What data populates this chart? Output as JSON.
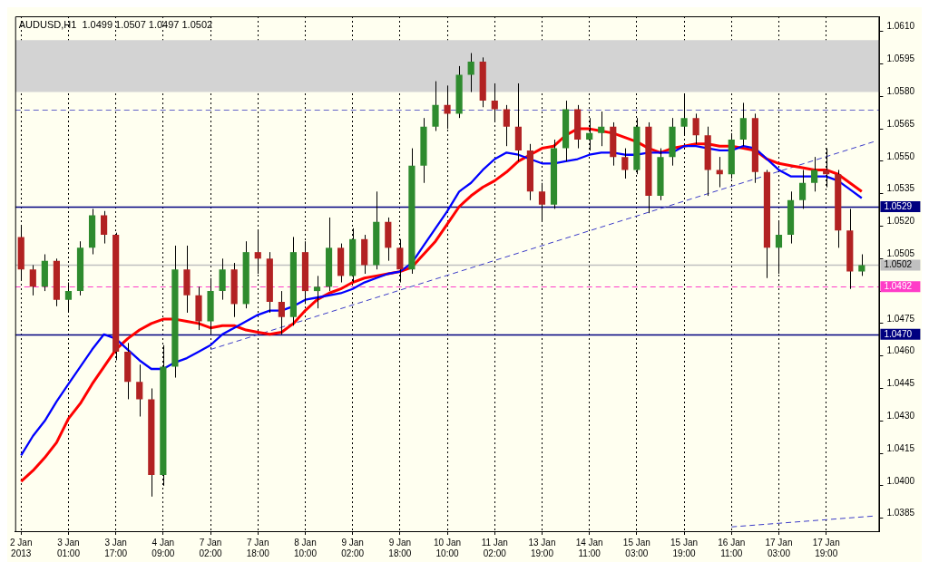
{
  "chart_data": {
    "type": "candlestick",
    "title": "AUDUSD,H1  1.0499 1.0507 1.0497 1.0502",
    "categories": [
      "2 Jan 2013",
      null,
      null,
      null,
      "3 Jan 01:00",
      null,
      null,
      null,
      "3 Jan 17:00",
      null,
      null,
      null,
      "4 Jan 09:00",
      null,
      null,
      null,
      "7 Jan 02:00",
      null,
      null,
      null,
      "7 Jan 18:00",
      null,
      null,
      null,
      "8 Jan 10:00",
      null,
      null,
      null,
      "9 Jan 02:00",
      null,
      null,
      null,
      "9 Jan 18:00",
      null,
      null,
      null,
      "10 Jan 10:00",
      null,
      null,
      null,
      "11 Jan 02:00",
      null,
      null,
      null,
      "13 Jan 19:00",
      null,
      null,
      null,
      "14 Jan 11:00",
      null,
      null,
      null,
      "15 Jan 03:00",
      null,
      null,
      null,
      "15 Jan 19:00",
      null,
      null,
      null,
      "16 Jan 11:00",
      null,
      null,
      null,
      "17 Jan 03:00",
      null,
      null,
      null,
      "17 Jan 19:00",
      null,
      null,
      null,
      null
    ],
    "series": [
      {
        "ohlc": [
          [
            1.0515,
            1.052,
            1.0495,
            1.05
          ],
          [
            1.05,
            1.0502,
            1.0488,
            1.0492
          ],
          [
            1.0492,
            1.0507,
            1.049,
            1.0504
          ],
          [
            1.0504,
            1.0505,
            1.0483,
            1.0486
          ],
          [
            1.0486,
            1.0494,
            1.048,
            1.049
          ],
          [
            1.049,
            1.0513,
            1.0488,
            1.051
          ],
          [
            1.051,
            1.0528,
            1.0507,
            1.0525
          ],
          [
            1.0525,
            1.0527,
            1.0512,
            1.0516
          ],
          [
            1.0516,
            1.0517,
            1.0458,
            1.0462
          ],
          [
            1.0462,
            1.0466,
            1.044,
            1.0448
          ],
          [
            1.0448,
            1.0456,
            1.0432,
            1.044
          ],
          [
            1.044,
            1.0445,
            1.0395,
            1.0405
          ],
          [
            1.0405,
            1.0465,
            1.04,
            1.0455
          ],
          [
            1.0455,
            1.0511,
            1.045,
            1.05
          ],
          [
            1.05,
            1.0511,
            1.048,
            1.0488
          ],
          [
            1.0488,
            1.0492,
            1.0472,
            1.0476
          ],
          [
            1.0476,
            1.0496,
            1.047,
            1.049
          ],
          [
            1.049,
            1.0505,
            1.0486,
            1.05
          ],
          [
            1.05,
            1.0503,
            1.0478,
            1.0484
          ],
          [
            1.0484,
            1.0513,
            1.0482,
            1.0508
          ],
          [
            1.0508,
            1.0518,
            1.0498,
            1.0505
          ],
          [
            1.0505,
            1.0508,
            1.048,
            1.0485
          ],
          [
            1.0485,
            1.049,
            1.047,
            1.0478
          ],
          [
            1.0478,
            1.0515,
            1.0474,
            1.0508
          ],
          [
            1.0508,
            1.0513,
            1.0484,
            1.049
          ],
          [
            1.049,
            1.0497,
            1.0482,
            1.0492
          ],
          [
            1.0492,
            1.0524,
            1.049,
            1.051
          ],
          [
            1.051,
            1.0512,
            1.0494,
            1.0497
          ],
          [
            1.0497,
            1.0519,
            1.0494,
            1.0514
          ],
          [
            1.0514,
            1.0516,
            1.0498,
            1.0502
          ],
          [
            1.0502,
            1.0536,
            1.05,
            1.0522
          ],
          [
            1.0522,
            1.0524,
            1.0504,
            1.051
          ],
          [
            1.051,
            1.0514,
            1.0494,
            1.05
          ],
          [
            1.05,
            1.0556,
            1.0498,
            1.0548
          ],
          [
            1.0548,
            1.057,
            1.054,
            1.0566
          ],
          [
            1.0566,
            1.0587,
            1.0564,
            1.0576
          ],
          [
            1.0576,
            1.0585,
            1.0565,
            1.0572
          ],
          [
            1.0572,
            1.0594,
            1.057,
            1.059
          ],
          [
            1.059,
            1.06,
            1.0582,
            1.0596
          ],
          [
            1.0596,
            1.0598,
            1.0575,
            1.0578
          ],
          [
            1.0578,
            1.0586,
            1.0568,
            1.0574
          ],
          [
            1.0574,
            1.0576,
            1.0557,
            1.0566
          ],
          [
            1.0566,
            1.0586,
            1.055,
            1.0555
          ],
          [
            1.0555,
            1.0558,
            1.0532,
            1.0536
          ],
          [
            1.0536,
            1.054,
            1.0522,
            1.053
          ],
          [
            1.053,
            1.056,
            1.0528,
            1.0556
          ],
          [
            1.0556,
            1.0578,
            1.055,
            1.0574
          ],
          [
            1.0574,
            1.0576,
            1.0556,
            1.056
          ],
          [
            1.056,
            1.057,
            1.0555,
            1.0563
          ],
          [
            1.0563,
            1.0573,
            1.0557,
            1.0566
          ],
          [
            1.0566,
            1.0568,
            1.0548,
            1.0552
          ],
          [
            1.0552,
            1.0556,
            1.0542,
            1.0546
          ],
          [
            1.0546,
            1.057,
            1.0544,
            1.0566
          ],
          [
            1.0566,
            1.0568,
            1.0526,
            1.0534
          ],
          [
            1.0534,
            1.0556,
            1.0532,
            1.0552
          ],
          [
            1.0552,
            1.057,
            1.0548,
            1.0566
          ],
          [
            1.0566,
            1.0581,
            1.0562,
            1.057
          ],
          [
            1.057,
            1.0572,
            1.0558,
            1.0562
          ],
          [
            1.0562,
            1.0566,
            1.0534,
            1.0546
          ],
          [
            1.0546,
            1.0552,
            1.0538,
            1.0544
          ],
          [
            1.0544,
            1.0563,
            1.0542,
            1.056
          ],
          [
            1.056,
            1.0577,
            1.0557,
            1.057
          ],
          [
            1.057,
            1.0572,
            1.054,
            1.0545
          ],
          [
            1.0545,
            1.0546,
            1.0496,
            1.051
          ],
          [
            1.051,
            1.0522,
            1.0498,
            1.0516
          ],
          [
            1.0516,
            1.0536,
            1.0512,
            1.0532
          ],
          [
            1.0532,
            1.0546,
            1.0528,
            1.054
          ],
          [
            1.054,
            1.0552,
            1.0536,
            1.0546
          ],
          [
            1.0546,
            1.0556,
            1.0538,
            1.0544
          ],
          [
            1.0544,
            1.0546,
            1.051,
            1.0518
          ],
          [
            1.0518,
            1.0528,
            1.0491,
            1.0499
          ],
          [
            1.0499,
            1.0507,
            1.0497,
            1.0502
          ],
          null
        ],
        "colors": [
          "#b22222",
          "#b22222",
          "#2e8b2e",
          "#b22222",
          "#2e8b2e",
          "#2e8b2e",
          "#2e8b2e",
          "#b22222",
          "#b22222",
          "#b22222",
          "#b22222",
          "#b22222",
          "#2e8b2e",
          "#2e8b2e",
          "#b22222",
          "#b22222",
          "#2e8b2e",
          "#2e8b2e",
          "#b22222",
          "#2e8b2e",
          "#b22222",
          "#b22222",
          "#b22222",
          "#2e8b2e",
          "#b22222",
          "#2e8b2e",
          "#2e8b2e",
          "#b22222",
          "#2e8b2e",
          "#b22222",
          "#2e8b2e",
          "#b22222",
          "#b22222",
          "#2e8b2e",
          "#2e8b2e",
          "#2e8b2e",
          "#b22222",
          "#2e8b2e",
          "#2e8b2e",
          "#b22222",
          "#b22222",
          "#b22222",
          "#b22222",
          "#b22222",
          "#b22222",
          "#2e8b2e",
          "#2e8b2e",
          "#b22222",
          "#2e8b2e",
          "#2e8b2e",
          "#b22222",
          "#b22222",
          "#2e8b2e",
          "#b22222",
          "#2e8b2e",
          "#2e8b2e",
          "#2e8b2e",
          "#b22222",
          "#b22222",
          "#b22222",
          "#2e8b2e",
          "#2e8b2e",
          "#b22222",
          "#b22222",
          "#2e8b2e",
          "#2e8b2e",
          "#2e8b2e",
          "#2e8b2e",
          "#b22222",
          "#b22222",
          "#b22222",
          "#2e8b2e",
          null
        ]
      },
      {
        "type": "line",
        "color": "#0000ff",
        "values": [
          1.0414,
          1.0423,
          1.043,
          1.0439,
          1.0447,
          1.0455,
          1.0463,
          1.047,
          1.0468,
          1.0463,
          1.0458,
          1.0454,
          1.0454,
          1.0457,
          1.0459,
          1.0462,
          1.0465,
          1.047,
          1.0473,
          1.0476,
          1.0479,
          1.0481,
          1.0481,
          1.0483,
          1.0486,
          1.0487,
          1.0488,
          1.0489,
          1.0491,
          1.0494,
          1.0496,
          1.0498,
          1.0499,
          1.0503,
          1.0511,
          1.0519,
          1.0527,
          1.0536,
          1.054,
          1.0546,
          1.0551,
          1.0554,
          1.0553,
          1.0551,
          1.0549,
          1.0549,
          1.055,
          1.0551,
          1.0553,
          1.0554,
          1.0554,
          1.0553,
          1.0553,
          1.0554,
          1.0554,
          1.0554,
          1.0557,
          1.0557,
          1.0556,
          1.0555,
          1.0555,
          1.0557,
          1.0556,
          1.0551,
          1.0546,
          1.0543,
          1.0543,
          1.0543,
          1.0543,
          1.0541,
          1.0537,
          1.0533,
          null
        ]
      },
      {
        "type": "line",
        "color": "#ff0000",
        "values": [
          1.0402,
          1.0407,
          1.0413,
          1.042,
          1.0431,
          1.0438,
          1.0447,
          1.0455,
          1.0463,
          1.0468,
          1.0472,
          1.0475,
          1.0477,
          1.0477,
          1.0476,
          1.0475,
          1.0473,
          1.0474,
          1.0474,
          1.0472,
          1.0471,
          1.047,
          1.0471,
          1.0475,
          1.0481,
          1.0486,
          1.0489,
          1.0491,
          1.0494,
          1.0496,
          1.0497,
          1.0498,
          1.0499,
          1.0501,
          1.0507,
          1.0513,
          1.0521,
          1.0529,
          1.0534,
          1.0538,
          1.0541,
          1.0545,
          1.055,
          1.0553,
          1.0556,
          1.0557,
          1.0562,
          1.0565,
          1.0565,
          1.0564,
          1.0563,
          1.0561,
          1.0559,
          1.0556,
          1.0554,
          1.0556,
          1.0557,
          1.0558,
          1.0558,
          1.0557,
          1.0557,
          1.0556,
          1.0555,
          1.0551,
          1.0549,
          1.0548,
          1.0547,
          1.0546,
          1.0546,
          1.0544,
          1.054,
          1.0536,
          null
        ]
      },
      {
        "type": "line",
        "color": "#3c3cc8",
        "line_style": "dashed",
        "values": [
          null,
          null,
          null,
          null,
          null,
          null,
          null,
          null,
          null,
          null,
          null,
          null,
          null,
          null,
          null,
          null,
          1.0463,
          null,
          null,
          null,
          null,
          null,
          null,
          null,
          null,
          null,
          null,
          null,
          null,
          null,
          null,
          null,
          null,
          null,
          null,
          null,
          null,
          null,
          null,
          null,
          null,
          null,
          null,
          null,
          null,
          null,
          null,
          null,
          null,
          null,
          null,
          null,
          null,
          null,
          null,
          null,
          null,
          null,
          null,
          null,
          null,
          null,
          null,
          null,
          null,
          null,
          null,
          null,
          null,
          null,
          null,
          null,
          1.0559
        ]
      },
      {
        "type": "line",
        "color": "#3c3cc8",
        "line_style": "dashed",
        "values": [
          null,
          null,
          null,
          null,
          null,
          null,
          null,
          null,
          null,
          null,
          null,
          null,
          null,
          null,
          null,
          null,
          null,
          null,
          null,
          null,
          null,
          null,
          null,
          null,
          null,
          null,
          null,
          null,
          null,
          null,
          null,
          null,
          null,
          null,
          null,
          null,
          null,
          null,
          null,
          null,
          null,
          null,
          null,
          null,
          null,
          null,
          null,
          null,
          null,
          null,
          null,
          null,
          null,
          null,
          null,
          null,
          null,
          null,
          null,
          null,
          1.0381,
          null,
          null,
          null,
          null,
          null,
          null,
          null,
          null,
          null,
          null,
          null,
          1.0386
        ]
      }
    ],
    "ylim": [
      1.0379,
      1.0617
    ],
    "yticks": [
      1.0385,
      {
        "value": 1.04,
        "label": "1.0400"
      },
      1.0415,
      {
        "value": 1.043,
        "label": "1.0430"
      },
      1.0445,
      {
        "value": 1.046,
        "label": "1.0460"
      },
      1.0475,
      {
        "value": 1.049,
        "label": null
      },
      1.0505,
      {
        "value": 1.052,
        "label": "1.0520"
      },
      1.0535,
      {
        "value": 1.055,
        "label": "1.0550"
      },
      1.0565,
      {
        "value": 1.058,
        "label": "1.0580"
      },
      1.0595,
      {
        "value": 1.061,
        "label": "1.0610"
      }
    ],
    "grid": "x",
    "bands": [
      {
        "axis": "y",
        "from": 1.0582,
        "to": 1.0606,
        "color": "#d3d3d3"
      }
    ],
    "ref_lines": [
      {
        "axis": "y",
        "value": 1.0574,
        "color": "#6464c8",
        "line_style": "dashed"
      },
      {
        "axis": "y",
        "value": 1.0529,
        "label": "1.0529",
        "color": "#000080",
        "line_style": "solid"
      },
      {
        "axis": "y",
        "value": 1.0502,
        "label": "1.0502",
        "color": "#c0c0c0",
        "line_style": "solid"
      },
      {
        "axis": "y",
        "value": 1.0492,
        "label": "1.0492",
        "color": "#ff3cc8",
        "line_style": "dashed"
      },
      {
        "axis": "y",
        "value": 1.047,
        "label": "1.0470",
        "color": "#000080",
        "line_style": "solid"
      }
    ]
  }
}
